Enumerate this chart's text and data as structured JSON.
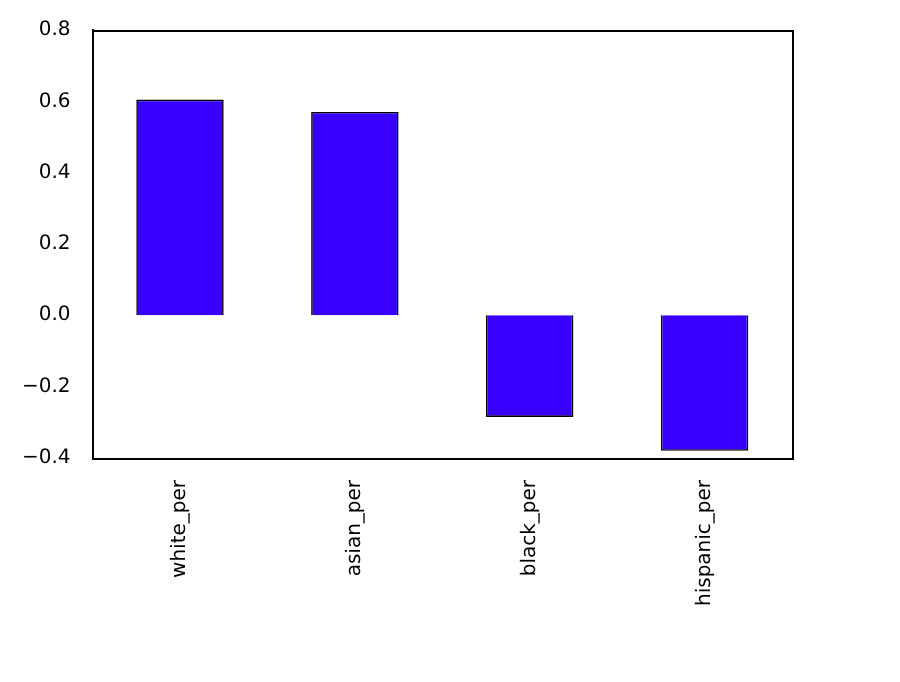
{
  "chart_data": {
    "type": "bar",
    "categories": [
      "white_per",
      "asian_per",
      "black_per",
      "hispanic_per"
    ],
    "values": [
      0.605,
      0.57,
      -0.285,
      -0.38
    ],
    "color": "#3a00ff",
    "ylim": [
      -0.4,
      0.8
    ],
    "yticks": [
      {
        "value": -0.4,
        "label": "−0.4"
      },
      {
        "value": -0.2,
        "label": "−0.2"
      },
      {
        "value": 0,
        "label": "0.0"
      },
      {
        "value": 0.2,
        "label": "0.2"
      },
      {
        "value": 0.4,
        "label": "0.4"
      },
      {
        "value": 0.6,
        "label": "0.6"
      },
      {
        "value": 0.8,
        "label": "0.8"
      }
    ],
    "grid": false,
    "legend": false
  }
}
